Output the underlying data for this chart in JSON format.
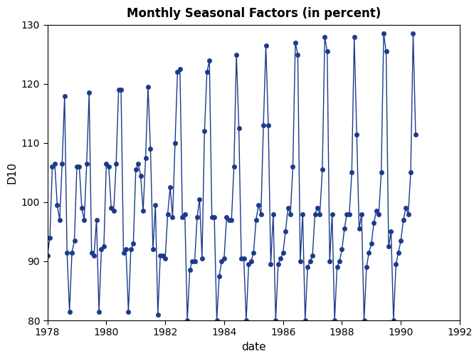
{
  "title": "Monthly Seasonal Factors (in percent)",
  "xlabel": "date",
  "ylabel": "D10",
  "xlim": [
    1978,
    1992
  ],
  "ylim": [
    80,
    130
  ],
  "xticks": [
    1978,
    1980,
    1982,
    1984,
    1986,
    1988,
    1990,
    1992
  ],
  "yticks": [
    80,
    90,
    100,
    110,
    120,
    130
  ],
  "line_color": "#1B3A8A",
  "marker_color": "#1B3A8A",
  "marker_size": 4.5,
  "line_width": 1.0,
  "values": [
    91.0,
    94.0,
    106.0,
    106.5,
    99.5,
    97.0,
    106.5,
    118.0,
    91.5,
    81.5,
    91.5,
    93.5,
    106.0,
    106.0,
    99.0,
    97.0,
    106.5,
    118.5,
    91.5,
    91.0,
    97.0,
    81.5,
    92.0,
    92.5,
    106.5,
    106.0,
    99.0,
    98.5,
    106.5,
    119.0,
    119.0,
    91.5,
    92.0,
    81.5,
    92.0,
    93.0,
    105.5,
    106.5,
    104.5,
    98.5,
    107.5,
    119.5,
    109.0,
    92.0,
    99.5,
    81.0,
    91.0,
    91.0,
    90.5,
    98.0,
    102.5,
    97.5,
    110.0,
    122.0,
    122.5,
    97.5,
    98.0,
    80.0,
    88.5,
    90.0,
    90.0,
    97.5,
    100.5,
    90.5,
    112.0,
    122.0,
    124.0,
    97.5,
    97.5,
    80.0,
    87.5,
    90.0,
    90.5,
    97.5,
    97.0,
    97.0,
    106.0,
    125.0,
    112.5,
    90.5,
    90.5,
    80.0,
    89.5,
    90.0,
    91.5,
    97.0,
    99.5,
    98.0,
    113.0,
    126.5,
    113.0,
    89.5,
    98.0,
    80.0,
    89.5,
    90.5,
    91.5,
    95.0,
    99.0,
    98.0,
    106.0,
    127.0,
    125.0,
    90.0,
    98.0,
    80.0,
    89.0,
    90.0,
    91.0,
    98.0,
    99.0,
    98.0,
    105.5,
    128.0,
    125.5,
    90.0,
    98.0,
    80.0,
    89.0,
    90.0,
    92.0,
    95.5,
    98.0,
    98.0,
    105.0,
    128.0,
    111.5,
    95.5,
    98.0,
    80.0,
    89.0,
    91.5,
    93.0,
    96.5,
    98.5,
    98.0,
    105.0,
    128.5,
    125.5,
    92.5,
    95.0,
    80.0,
    89.5,
    91.5,
    93.5,
    97.0,
    99.0,
    98.0,
    105.0,
    128.5,
    111.5
  ],
  "start_year": 1978,
  "start_month": 1
}
